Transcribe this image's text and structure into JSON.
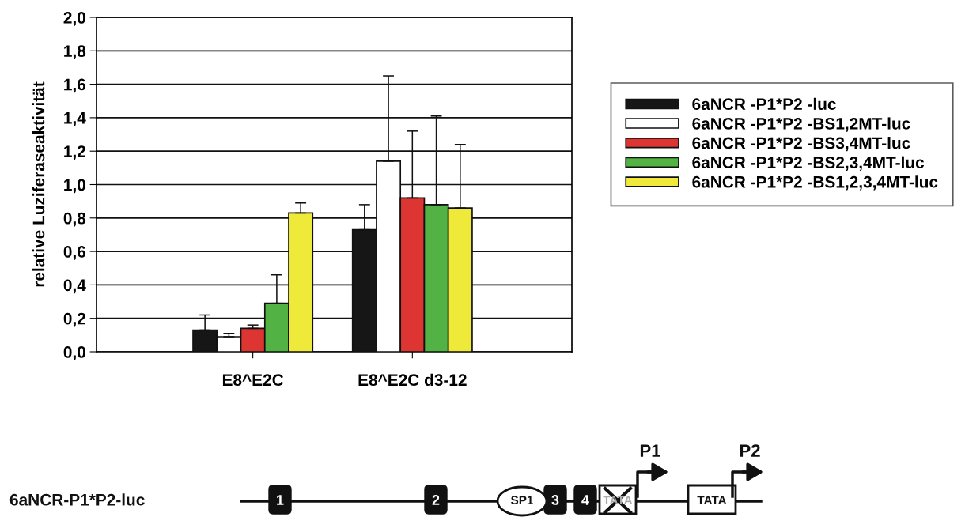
{
  "chart_data": {
    "type": "bar",
    "ylabel": "relative Luziferaseaktivität",
    "categories": [
      "E8^E2C",
      "E8^E2C d3-12"
    ],
    "series": [
      {
        "name": "6aNCR -P1*P2 -luc",
        "color": "#161616",
        "values": [
          0.13,
          0.73
        ],
        "errors": [
          [
            0.13,
            0.22
          ],
          [
            0.73,
            0.88
          ]
        ]
      },
      {
        "name": "6aNCR -P1*P2 -BS1,2MT-luc",
        "color": "#ffffff",
        "values": [
          0.09,
          1.14
        ],
        "errors": [
          [
            0.09,
            0.11
          ],
          [
            1.14,
            1.65
          ]
        ]
      },
      {
        "name": "6aNCR -P1*P2 -BS3,4MT-luc",
        "color": "#dc3532",
        "values": [
          0.14,
          0.92
        ],
        "errors": [
          [
            0.14,
            0.16
          ],
          [
            0.92,
            1.32
          ]
        ]
      },
      {
        "name": "6aNCR -P1*P2 -BS2,3,4MT-luc",
        "color": "#52b244",
        "values": [
          0.29,
          0.88
        ],
        "errors": [
          [
            0.29,
            0.46
          ],
          [
            0.88,
            1.41
          ]
        ]
      },
      {
        "name": "6aNCR -P1*P2 -BS1,2,3,4MT-luc",
        "color": "#efea3a",
        "values": [
          0.83,
          0.86
        ],
        "errors": [
          [
            0.83,
            0.89
          ],
          [
            0.86,
            1.24
          ]
        ]
      }
    ],
    "ylim": [
      0,
      2.0
    ],
    "yticks": [
      {
        "value": 0,
        "label": "0,0"
      },
      {
        "value": 0.2,
        "label": "0,2"
      },
      {
        "value": 0.4,
        "label": "0,4"
      },
      {
        "value": 0.6,
        "label": "0,6"
      },
      {
        "value": 0.8,
        "label": "0,8"
      },
      {
        "value": 1.0,
        "label": "1,0"
      },
      {
        "value": 1.2,
        "label": "1,2"
      },
      {
        "value": 1.4,
        "label": "1,4"
      },
      {
        "value": 1.6,
        "label": "1,6"
      },
      {
        "value": 1.8,
        "label": "1,8"
      },
      {
        "value": 2.0,
        "label": "2,0"
      }
    ],
    "grid": "y",
    "legend": "right",
    "annotations": [
      "6aNCR-P1*P2-luc",
      "1",
      "2",
      "SP1",
      "3",
      "4",
      "TATA",
      "TATA",
      "P1",
      "P2"
    ]
  }
}
